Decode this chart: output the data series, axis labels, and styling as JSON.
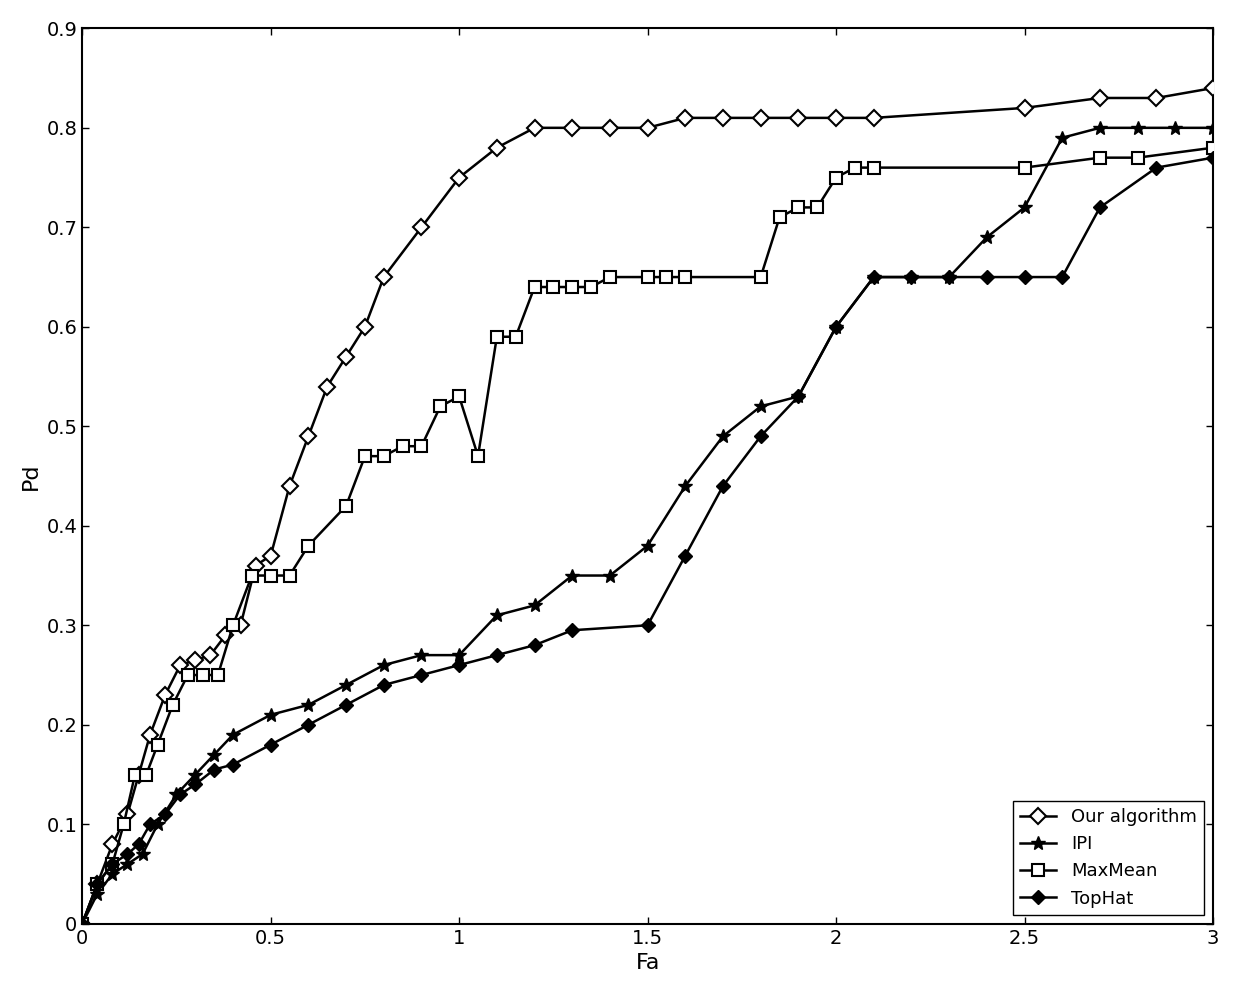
{
  "xlabel": "Fa",
  "ylabel": "Pd",
  "xlim": [
    0,
    3
  ],
  "ylim": [
    0,
    0.9
  ],
  "xticks": [
    0,
    0.5,
    1,
    1.5,
    2,
    2.5,
    3
  ],
  "yticks": [
    0,
    0.1,
    0.2,
    0.3,
    0.4,
    0.5,
    0.6,
    0.7,
    0.8,
    0.9
  ],
  "background_color": "#ffffff",
  "series": [
    {
      "label": "Our algorithm",
      "x": [
        0,
        0.04,
        0.08,
        0.12,
        0.15,
        0.18,
        0.22,
        0.26,
        0.3,
        0.34,
        0.38,
        0.42,
        0.46,
        0.5,
        0.55,
        0.6,
        0.65,
        0.7,
        0.75,
        0.8,
        0.9,
        1.0,
        1.1,
        1.2,
        1.3,
        1.4,
        1.5,
        1.6,
        1.7,
        1.8,
        1.9,
        2.0,
        2.1,
        2.5,
        2.7,
        2.85,
        3.0
      ],
      "y": [
        0,
        0.04,
        0.08,
        0.11,
        0.15,
        0.19,
        0.23,
        0.26,
        0.265,
        0.27,
        0.29,
        0.3,
        0.36,
        0.37,
        0.44,
        0.49,
        0.54,
        0.57,
        0.6,
        0.65,
        0.7,
        0.75,
        0.78,
        0.8,
        0.8,
        0.8,
        0.8,
        0.81,
        0.81,
        0.81,
        0.81,
        0.81,
        0.81,
        0.82,
        0.83,
        0.83,
        0.84
      ]
    },
    {
      "label": "IPI",
      "x": [
        0,
        0.04,
        0.08,
        0.12,
        0.16,
        0.2,
        0.25,
        0.3,
        0.35,
        0.4,
        0.5,
        0.6,
        0.7,
        0.8,
        0.9,
        1.0,
        1.1,
        1.2,
        1.3,
        1.4,
        1.5,
        1.6,
        1.7,
        1.8,
        1.9,
        2.0,
        2.1,
        2.2,
        2.3,
        2.4,
        2.5,
        2.6,
        2.7,
        2.8,
        2.9,
        3.0
      ],
      "y": [
        0,
        0.03,
        0.05,
        0.06,
        0.07,
        0.1,
        0.13,
        0.15,
        0.17,
        0.19,
        0.21,
        0.22,
        0.24,
        0.26,
        0.27,
        0.27,
        0.31,
        0.32,
        0.35,
        0.35,
        0.38,
        0.44,
        0.49,
        0.52,
        0.53,
        0.6,
        0.65,
        0.65,
        0.65,
        0.69,
        0.72,
        0.79,
        0.8,
        0.8,
        0.8,
        0.8
      ]
    },
    {
      "label": "MaxMean",
      "x": [
        0,
        0.04,
        0.08,
        0.11,
        0.14,
        0.17,
        0.2,
        0.24,
        0.28,
        0.32,
        0.36,
        0.4,
        0.45,
        0.5,
        0.55,
        0.6,
        0.7,
        0.75,
        0.8,
        0.85,
        0.9,
        0.95,
        1.0,
        1.05,
        1.1,
        1.15,
        1.2,
        1.25,
        1.3,
        1.35,
        1.4,
        1.5,
        1.55,
        1.6,
        1.8,
        1.85,
        1.9,
        1.95,
        2.0,
        2.05,
        2.1,
        2.5,
        2.7,
        2.8,
        3.0
      ],
      "y": [
        0,
        0.04,
        0.06,
        0.1,
        0.15,
        0.15,
        0.18,
        0.22,
        0.25,
        0.25,
        0.25,
        0.3,
        0.35,
        0.35,
        0.35,
        0.38,
        0.42,
        0.47,
        0.47,
        0.48,
        0.48,
        0.52,
        0.53,
        0.47,
        0.59,
        0.59,
        0.64,
        0.64,
        0.64,
        0.64,
        0.65,
        0.65,
        0.65,
        0.65,
        0.65,
        0.71,
        0.72,
        0.72,
        0.75,
        0.76,
        0.76,
        0.76,
        0.77,
        0.77,
        0.78
      ]
    },
    {
      "label": "TopHat",
      "x": [
        0,
        0.04,
        0.08,
        0.12,
        0.15,
        0.18,
        0.22,
        0.26,
        0.3,
        0.35,
        0.4,
        0.5,
        0.6,
        0.7,
        0.8,
        0.9,
        1.0,
        1.1,
        1.2,
        1.3,
        1.5,
        1.6,
        1.7,
        1.8,
        1.9,
        2.0,
        2.1,
        2.2,
        2.3,
        2.4,
        2.5,
        2.6,
        2.7,
        2.85,
        3.0
      ],
      "y": [
        0,
        0.04,
        0.06,
        0.07,
        0.08,
        0.1,
        0.11,
        0.13,
        0.14,
        0.155,
        0.16,
        0.18,
        0.2,
        0.22,
        0.24,
        0.25,
        0.26,
        0.27,
        0.28,
        0.295,
        0.3,
        0.37,
        0.44,
        0.49,
        0.53,
        0.6,
        0.65,
        0.65,
        0.65,
        0.65,
        0.65,
        0.65,
        0.72,
        0.76,
        0.77
      ]
    }
  ],
  "legend_loc": "lower right",
  "legend_fontsize": 13,
  "axis_fontsize": 16,
  "tick_fontsize": 14
}
